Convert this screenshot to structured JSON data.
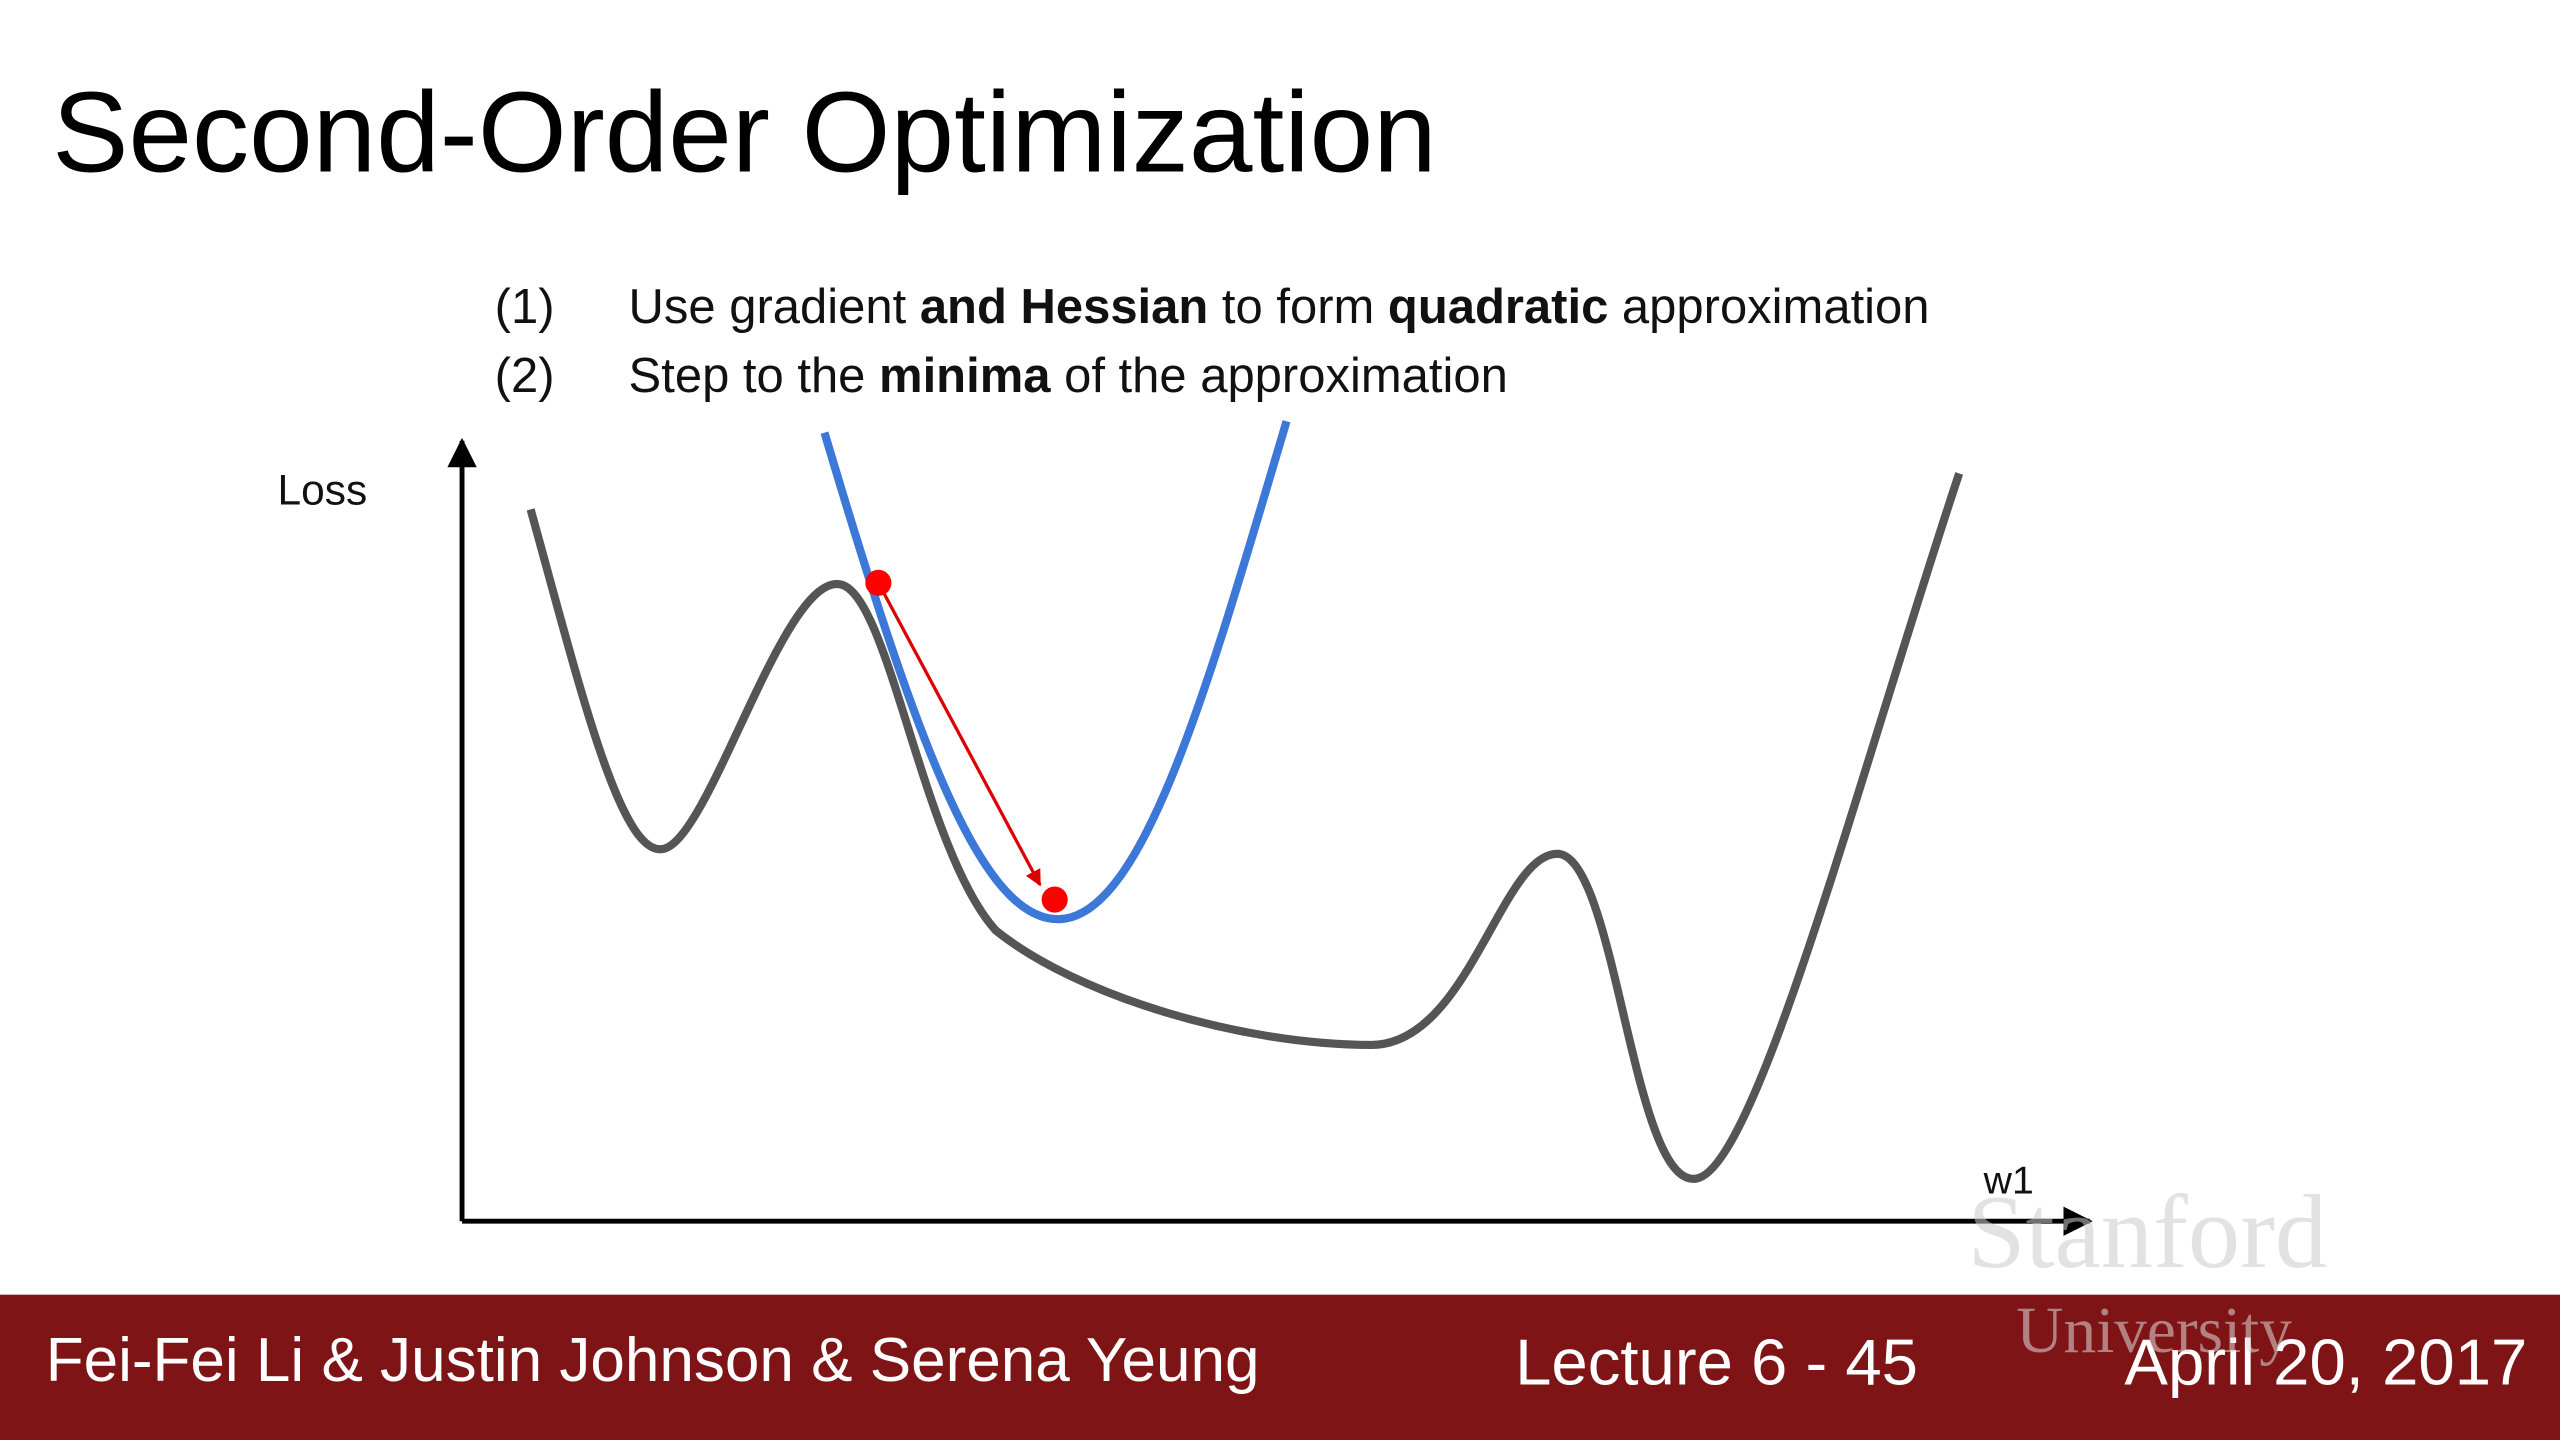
{
  "header": {
    "title": "Second-Order Optimization"
  },
  "steps": [
    {
      "number": "(1)",
      "segments": [
        {
          "text": "Use gradient ",
          "bold": false
        },
        {
          "text": "and Hessian",
          "bold": true
        },
        {
          "text": " to form ",
          "bold": false
        },
        {
          "text": "quadratic",
          "bold": true
        },
        {
          "text": " approximation",
          "bold": false
        }
      ]
    },
    {
      "number": "(2)",
      "segments": [
        {
          "text": "Step to the ",
          "bold": false
        },
        {
          "text": "minima",
          "bold": true
        },
        {
          "text": " of the approximation",
          "bold": false
        }
      ]
    }
  ],
  "diagram": {
    "y_axis_label": "Loss",
    "x_axis_label": "w1"
  },
  "watermark": {
    "line1": "Stanford",
    "line2": "University"
  },
  "footer": {
    "authors": "Fei-Fei Li & Justin Johnson & Serena Yeung",
    "lecture": "Lecture 6 - 45",
    "date": "April 20, 2017"
  }
}
